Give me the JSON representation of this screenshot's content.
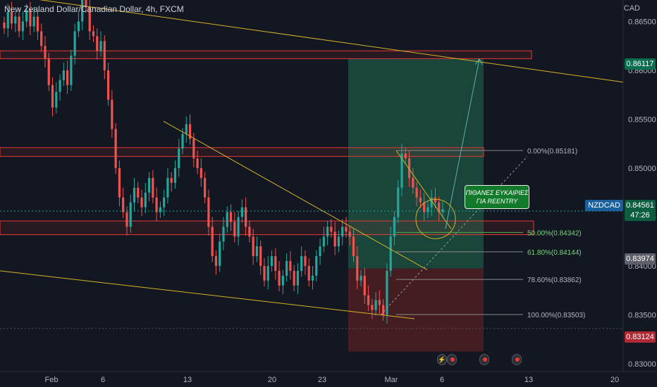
{
  "header": {
    "title": "New Zealand Dollar/Canadian Dollar, 4h, FXCM",
    "currency": "CAD"
  },
  "tags": {
    "target_price": "0.86117",
    "current_symbol": "NZDCAD",
    "current_price": "0.84561",
    "countdown": "47:26",
    "entry_price": "0.83974",
    "stop_price": "0.83124"
  },
  "note": {
    "line1": "ΠΙΘΑΝΕΣ ΕΥΚΑΙΡΙΕΣ",
    "line2": "ΓΙΑ REENTRY"
  },
  "colors": {
    "background": "#131722",
    "up_candle": "#26a69a",
    "down_candle": "#ef5350",
    "trendline": "#d4b429",
    "fib_line": "#8a8a8a",
    "fib_50": "#4caf50",
    "profit_zone": "#1b4d3e",
    "loss_zone": "#4a1e24",
    "box_border": "#e53935"
  },
  "chart_data": {
    "type": "candlestick",
    "timeframe": "4h",
    "y_axis": {
      "ticks": [
        "0.86500",
        "0.86000",
        "0.85500",
        "0.85000",
        "0.84500",
        "0.84000",
        "0.83500",
        "0.83000"
      ],
      "range": [
        0.8292,
        0.8672
      ]
    },
    "x_axis": {
      "ticks": [
        "Feb",
        "6",
        "13",
        "20",
        "23",
        "Mar",
        "6",
        "13",
        "20"
      ]
    },
    "fib_levels": [
      {
        "label": "0.00%(0.85181)",
        "value": 0.85181
      },
      {
        "label": "50.00%(0.84342)",
        "value": 0.84342
      },
      {
        "label": "61.80%(0.84144)",
        "value": 0.84144
      },
      {
        "label": "78.60%(0.83862)",
        "value": 0.83862
      },
      {
        "label": "100.00%(0.83503)",
        "value": 0.83503
      }
    ],
    "position": {
      "entry": 0.83974,
      "target": 0.86117,
      "stop": 0.83124
    },
    "current_price": 0.84561,
    "close_path": [
      0.8643,
      0.866,
      0.8648,
      0.8655,
      0.864,
      0.865,
      0.8662,
      0.8645,
      0.8655,
      0.864,
      0.8625,
      0.8612,
      0.8585,
      0.8562,
      0.8578,
      0.859,
      0.86,
      0.8585,
      0.8615,
      0.864,
      0.865,
      0.8675,
      0.8665,
      0.864,
      0.8635,
      0.862,
      0.863,
      0.86,
      0.857,
      0.854,
      0.85,
      0.847,
      0.8455,
      0.844,
      0.8465,
      0.848,
      0.847,
      0.846,
      0.8475,
      0.849,
      0.847,
      0.8455,
      0.846,
      0.847,
      0.849,
      0.8485,
      0.85,
      0.852,
      0.8535,
      0.8545,
      0.853,
      0.851,
      0.85,
      0.849,
      0.847,
      0.844,
      0.841,
      0.84,
      0.8425,
      0.844,
      0.8455,
      0.8445,
      0.843,
      0.845,
      0.846,
      0.844,
      0.843,
      0.841,
      0.842,
      0.84,
      0.8385,
      0.84,
      0.841,
      0.8395,
      0.838,
      0.839,
      0.8405,
      0.8395,
      0.838,
      0.8395,
      0.841,
      0.84,
      0.8385,
      0.839,
      0.841,
      0.842,
      0.843,
      0.844,
      0.8435,
      0.842,
      0.843,
      0.844,
      0.8435,
      0.843,
      0.841,
      0.8385,
      0.839,
      0.837,
      0.836,
      0.8355,
      0.8365,
      0.836,
      0.835,
      0.8395,
      0.843,
      0.845,
      0.848,
      0.8515,
      0.851,
      0.849,
      0.848,
      0.847,
      0.8465,
      0.8455,
      0.846,
      0.847,
      0.8465,
      0.8455,
      0.8458
    ]
  }
}
